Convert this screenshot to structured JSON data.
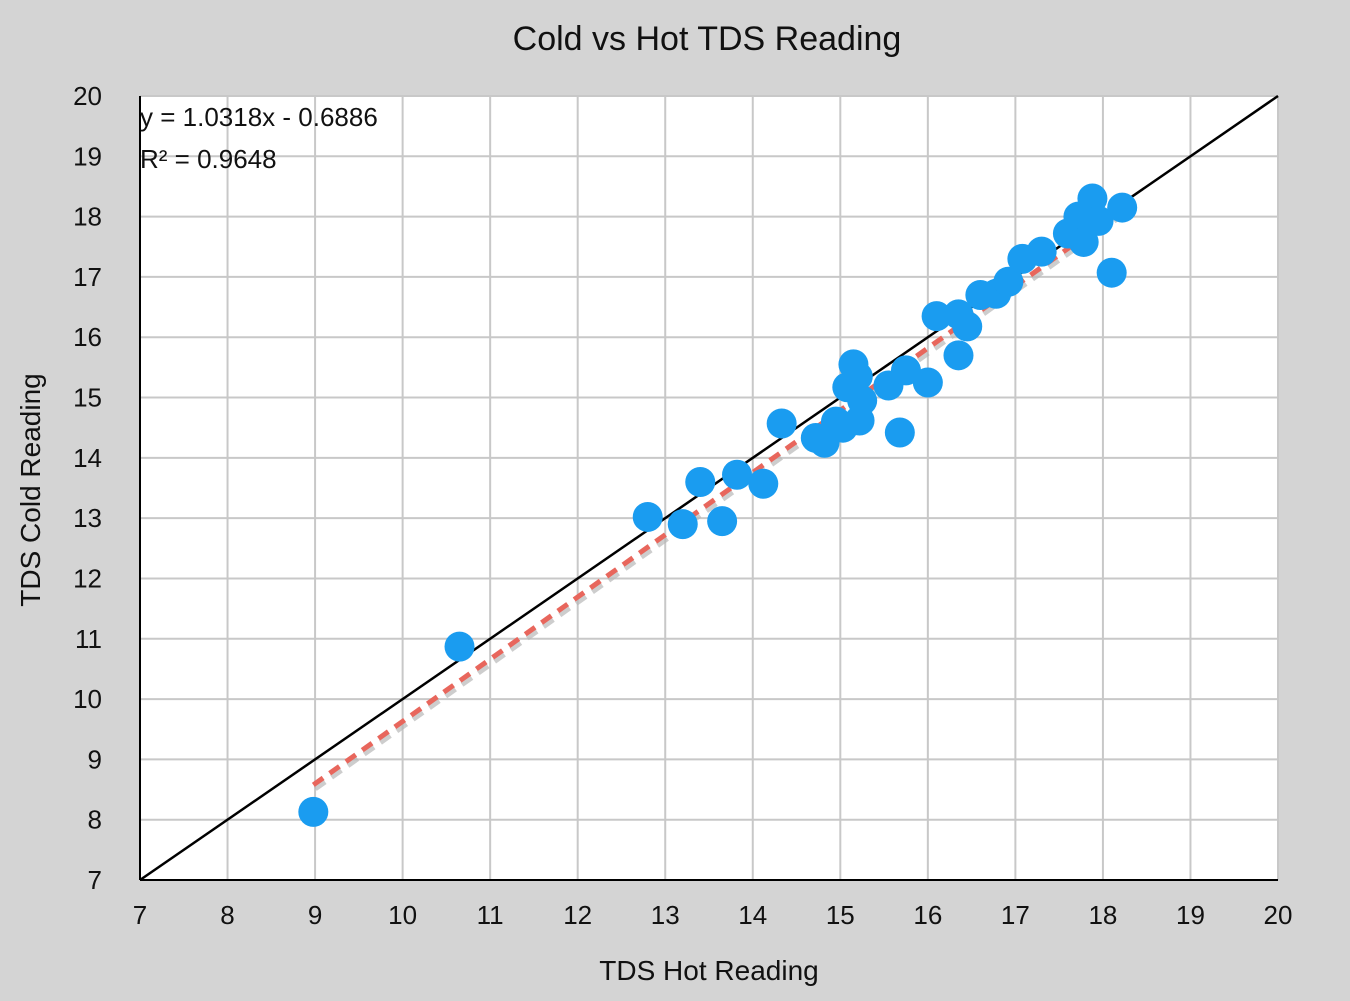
{
  "chart_data": {
    "type": "scatter",
    "title": "Cold vs Hot TDS Reading",
    "xlabel": "TDS Hot Reading",
    "ylabel": "TDS Cold Reading",
    "xlim": [
      7,
      20
    ],
    "ylim": [
      7,
      20
    ],
    "xticks": [
      7,
      8,
      9,
      10,
      11,
      12,
      13,
      14,
      15,
      16,
      17,
      18,
      19,
      20
    ],
    "yticks": [
      7,
      8,
      9,
      10,
      11,
      12,
      13,
      14,
      15,
      16,
      17,
      18,
      19,
      20
    ],
    "grid": true,
    "legend": "none",
    "colors": {
      "points": "#1a9cf0",
      "trendline": "#e8665c",
      "identity_line": "#000000",
      "plot_background": "#ffffff",
      "page_background": "#d4d4d4",
      "grid": "#c8c8c8"
    },
    "points": [
      {
        "x": 8.98,
        "y": 8.13
      },
      {
        "x": 10.65,
        "y": 10.87
      },
      {
        "x": 12.8,
        "y": 13.02
      },
      {
        "x": 13.2,
        "y": 12.9
      },
      {
        "x": 13.4,
        "y": 13.6
      },
      {
        "x": 13.65,
        "y": 12.95
      },
      {
        "x": 13.82,
        "y": 13.72
      },
      {
        "x": 14.12,
        "y": 13.57
      },
      {
        "x": 14.33,
        "y": 14.57
      },
      {
        "x": 14.72,
        "y": 14.33
      },
      {
        "x": 14.82,
        "y": 14.25
      },
      {
        "x": 14.95,
        "y": 14.6
      },
      {
        "x": 15.03,
        "y": 14.5
      },
      {
        "x": 15.08,
        "y": 15.17
      },
      {
        "x": 15.15,
        "y": 15.55
      },
      {
        "x": 15.2,
        "y": 15.35
      },
      {
        "x": 15.25,
        "y": 14.95
      },
      {
        "x": 15.22,
        "y": 14.62
      },
      {
        "x": 15.55,
        "y": 15.2
      },
      {
        "x": 15.68,
        "y": 14.42
      },
      {
        "x": 15.75,
        "y": 15.45
      },
      {
        "x": 16.0,
        "y": 15.25
      },
      {
        "x": 16.1,
        "y": 16.35
      },
      {
        "x": 16.35,
        "y": 16.38
      },
      {
        "x": 16.35,
        "y": 15.7
      },
      {
        "x": 16.45,
        "y": 16.18
      },
      {
        "x": 16.6,
        "y": 16.7
      },
      {
        "x": 16.78,
        "y": 16.72
      },
      {
        "x": 16.92,
        "y": 16.92
      },
      {
        "x": 17.08,
        "y": 17.3
      },
      {
        "x": 17.3,
        "y": 17.42
      },
      {
        "x": 17.6,
        "y": 17.72
      },
      {
        "x": 17.72,
        "y": 18.0
      },
      {
        "x": 17.78,
        "y": 17.58
      },
      {
        "x": 17.88,
        "y": 18.3
      },
      {
        "x": 17.95,
        "y": 17.93
      },
      {
        "x": 18.1,
        "y": 17.07
      },
      {
        "x": 18.22,
        "y": 18.15
      }
    ],
    "trendline": {
      "type": "linear",
      "slope": 1.0318,
      "intercept": -0.6886,
      "x_range": [
        8.98,
        18.22
      ],
      "equation": "y = 1.0318x - 0.6886",
      "r_squared": "R² = 0.9648"
    },
    "identity_line": {
      "slope": 1,
      "intercept": 0
    }
  }
}
